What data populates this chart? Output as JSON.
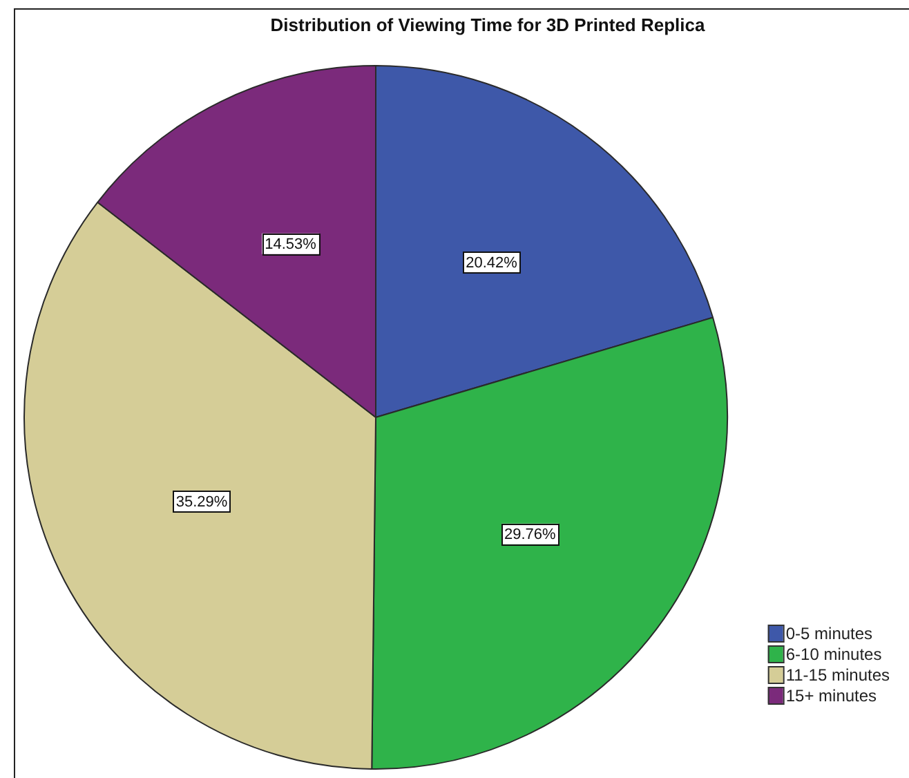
{
  "chart_data": {
    "type": "pie",
    "title": "Distribution of Viewing Time for 3D Printed Replica",
    "categories": [
      "0-5 minutes",
      "6-10 minutes",
      "11-15 minutes",
      "15+ minutes"
    ],
    "values": [
      20.42,
      29.76,
      35.29,
      14.53
    ],
    "colors": [
      "#3e58a9",
      "#2fb34a",
      "#d5cd97",
      "#7b2a7b"
    ],
    "value_labels": [
      "20.42%",
      "29.76%",
      "35.29%",
      "14.53%"
    ],
    "legend": "bottom right"
  }
}
